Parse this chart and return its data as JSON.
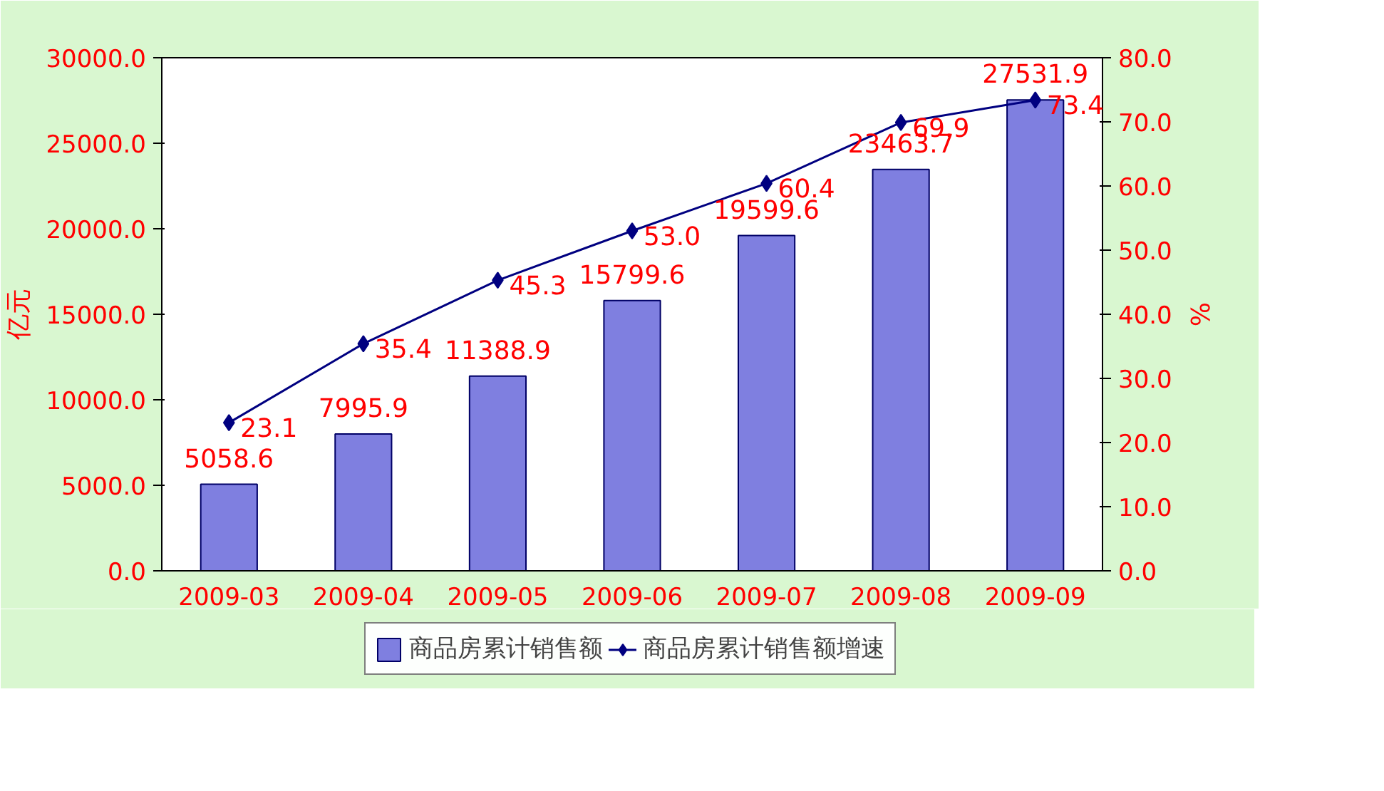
{
  "chart_data": {
    "type": "bar",
    "categories": [
      "2009-03",
      "2009-04",
      "2009-05",
      "2009-06",
      "2009-07",
      "2009-08",
      "2009-09"
    ],
    "ylabel": "亿元",
    "y2label": "%",
    "series": [
      {
        "name": "商品房累计销售额",
        "color": "#7f7fe0",
        "values": [
          5058.6,
          7995.9,
          11388.9,
          15799.6,
          19599.6,
          23463.7,
          27531.9
        ],
        "value_labels": [
          "5058.6",
          "7995.9",
          "11388.9",
          "15799.6",
          "19599.6",
          "23463.7",
          "27531.9"
        ]
      },
      {
        "name": "商品房累计销售额增速",
        "type": "line",
        "axis": "y2",
        "color": "#000080",
        "marker": "diamond",
        "values": [
          23.1,
          35.4,
          45.3,
          53.0,
          60.4,
          69.9,
          73.4
        ],
        "value_labels": [
          "23.1",
          "35.4",
          "45.3",
          "53.0",
          "60.4",
          "69.9",
          "73.4"
        ]
      }
    ],
    "ylim": [
      0,
      30000
    ],
    "yticks": [
      {
        "value": 0,
        "label": "0.0"
      },
      {
        "value": 5000,
        "label": "5000.0"
      },
      {
        "value": 10000,
        "label": "10000.0"
      },
      {
        "value": 15000,
        "label": "15000.0"
      },
      {
        "value": 20000,
        "label": "20000.0"
      },
      {
        "value": 25000,
        "label": "25000.0"
      },
      {
        "value": 30000,
        "label": "30000.0"
      }
    ],
    "y2lim": [
      0,
      80
    ],
    "y2ticks": [
      {
        "value": 0,
        "label": "0.0"
      },
      {
        "value": 10,
        "label": "10.0"
      },
      {
        "value": 20,
        "label": "20.0"
      },
      {
        "value": 30,
        "label": "30.0"
      },
      {
        "value": 40,
        "label": "40.0"
      },
      {
        "value": 50,
        "label": "50.0"
      },
      {
        "value": 60,
        "label": "60.0"
      },
      {
        "value": 70,
        "label": "70.0"
      },
      {
        "value": 80,
        "label": "80.0"
      }
    ],
    "legend": "bottom",
    "grid": false
  }
}
